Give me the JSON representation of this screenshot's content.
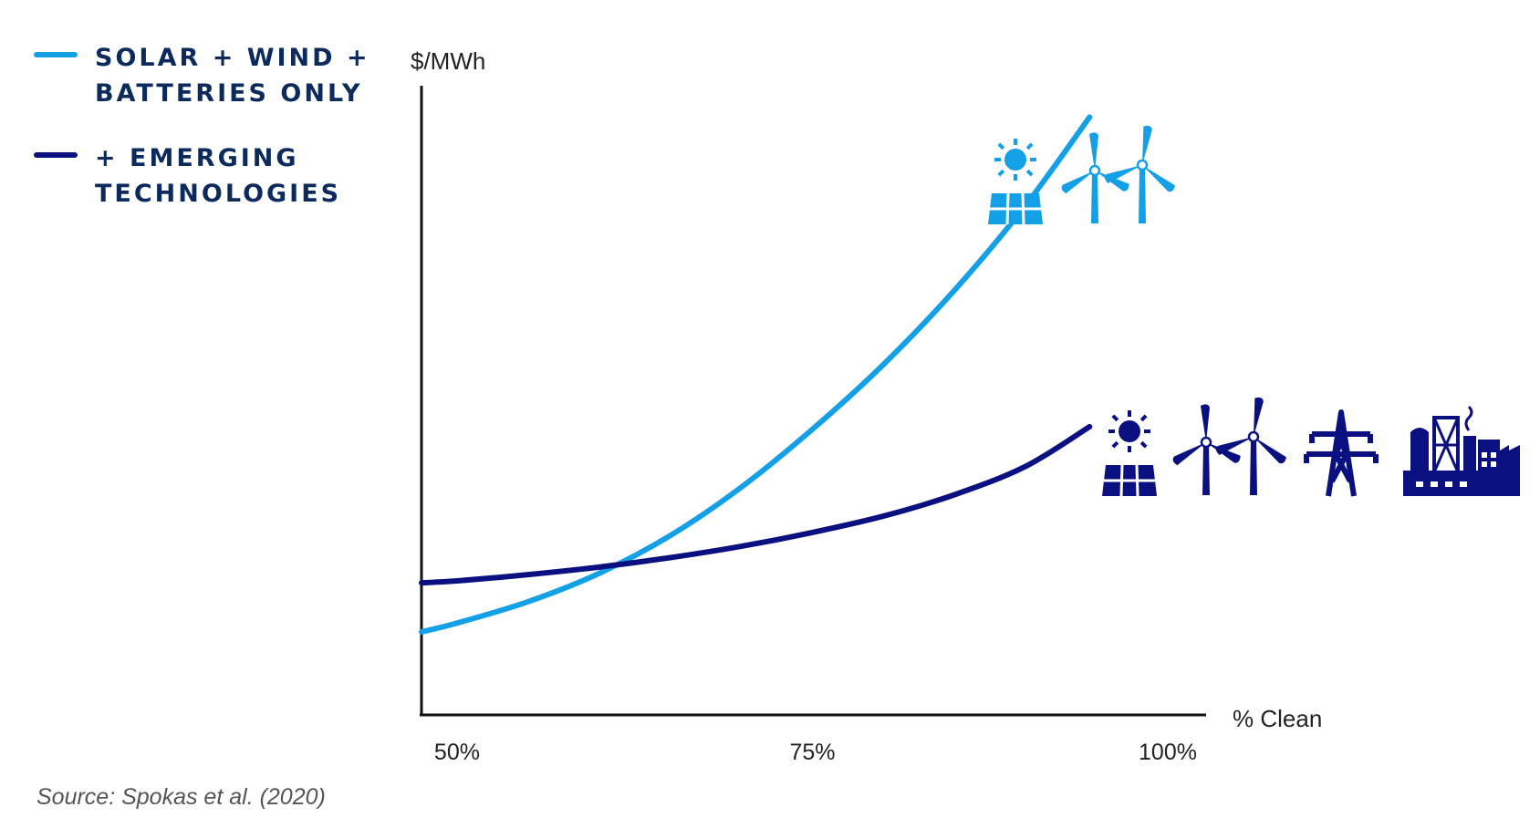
{
  "colors": {
    "series_light": "#14a0e6",
    "series_dark": "#0a107f",
    "legend_text": "#0c2a5c",
    "axis": "#111111"
  },
  "legend": [
    {
      "lines": [
        "SOLAR + WIND +",
        "BATTERIES ONLY"
      ],
      "color": "#14a0e6"
    },
    {
      "lines": [
        "+ EMERGING",
        "TECHNOLOGIES"
      ],
      "color": "#0a107f"
    }
  ],
  "source_text": "Source: Spokas et al. (2020)",
  "icons": {
    "light_group": [
      "solar-panel-icon",
      "wind-turbines-icon"
    ],
    "dark_group": [
      "solar-panel-icon",
      "wind-turbines-icon",
      "transmission-tower-icon",
      "industrial-plant-icon"
    ]
  },
  "chart_data": {
    "type": "line",
    "title": "",
    "xlabel": "% Clean",
    "ylabel": "$/MWh",
    "x_ticks": [
      50,
      75,
      100
    ],
    "x_tick_labels": [
      "50%",
      "75%",
      "100%"
    ],
    "xlim": [
      47.5,
      103
    ],
    "ylim": [
      0,
      100
    ],
    "grid": false,
    "legend_position": "top-left",
    "series": [
      {
        "name": "SOLAR + WIND + BATTERIES ONLY",
        "color": "#14a0e6",
        "x": [
          47.5,
          50,
          55,
          60,
          65,
          70,
          75,
          80,
          85,
          90,
          94.5
        ],
        "y": [
          13.2,
          14.6,
          18.0,
          22.5,
          28.5,
          36.2,
          45.4,
          55.7,
          67.5,
          81.0,
          95.0
        ]
      },
      {
        "name": "+ EMERGING TECHNOLOGIES",
        "color": "#0a107f",
        "x": [
          47.5,
          50,
          55,
          60,
          65,
          70,
          75,
          80,
          85,
          90,
          94.5
        ],
        "y": [
          21.0,
          21.3,
          22.3,
          23.5,
          25.0,
          26.8,
          29.0,
          31.6,
          35.0,
          39.5,
          45.8
        ]
      }
    ]
  }
}
